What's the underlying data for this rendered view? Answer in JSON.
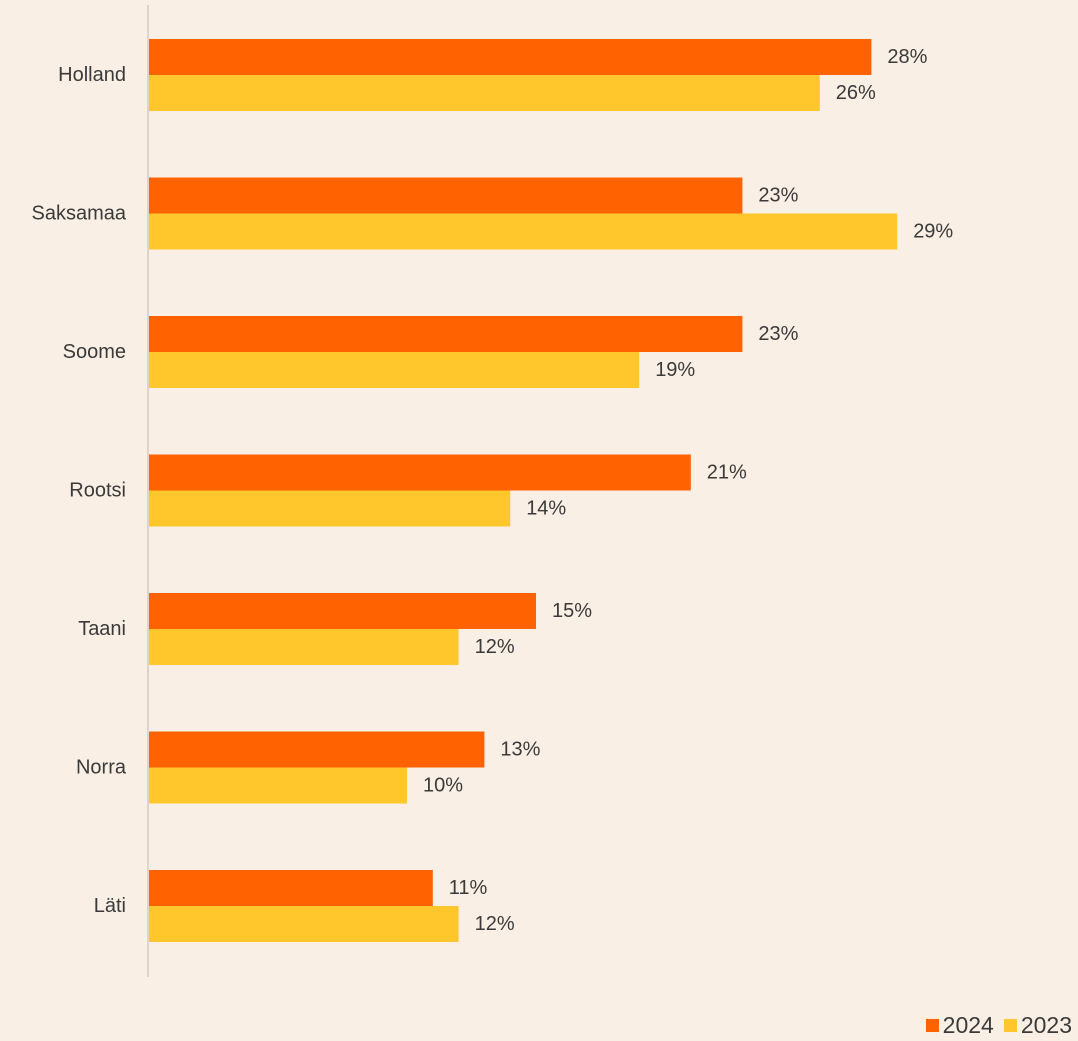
{
  "chart_data": {
    "type": "bar",
    "orientation": "horizontal",
    "categories": [
      "Holland",
      "Saksamaa",
      "Soome",
      "Rootsi",
      "Taani",
      "Norra",
      "Läti"
    ],
    "series": [
      {
        "name": "2024",
        "color": "#FF6200",
        "values": [
          28,
          23,
          23,
          21,
          15,
          13,
          11
        ],
        "labels": [
          "28%",
          "23%",
          "23%",
          "21%",
          "15%",
          "13%",
          "11%"
        ]
      },
      {
        "name": "2023",
        "color": "#FFC72C",
        "values": [
          26,
          29,
          19,
          14,
          12,
          10,
          12
        ],
        "labels": [
          "26%",
          "29%",
          "19%",
          "14%",
          "12%",
          "10%",
          "12%"
        ]
      }
    ],
    "xlim": [
      0,
      30
    ],
    "grid": false,
    "legend_position": "bottom-right",
    "axis_color": "#d5ccc3"
  }
}
